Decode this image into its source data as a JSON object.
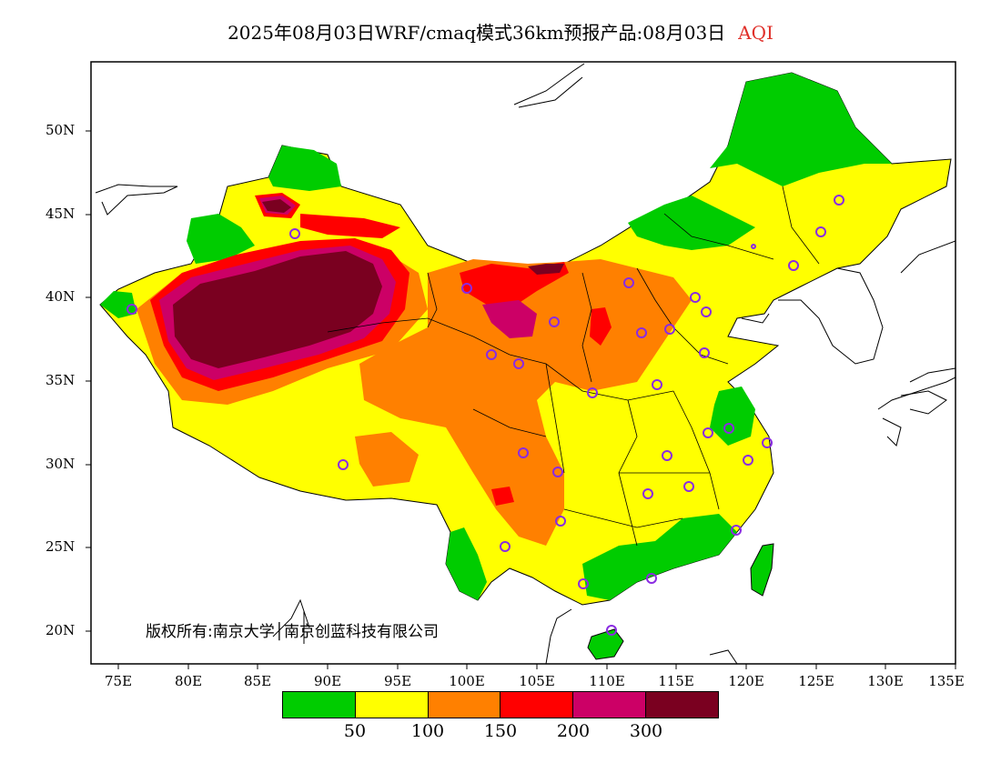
{
  "title": {
    "main": "2025年08月03日WRF/cmaq模式36km预报产品:08月03日",
    "variable": "AQI"
  },
  "axes": {
    "lat_ticks": [
      "50N",
      "45N",
      "40N",
      "35N",
      "30N",
      "25N",
      "20N"
    ],
    "lon_ticks": [
      "75E",
      "80E",
      "85E",
      "90E",
      "95E",
      "100E",
      "105E",
      "110E",
      "115E",
      "120E",
      "125E",
      "130E",
      "135E"
    ]
  },
  "copyright": "版权所有:南京大学│南京创蓝科技有限公司",
  "legend": {
    "colors": [
      "#00cc00",
      "#ffff00",
      "#ff8000",
      "#ff0000",
      "#cc0066",
      "#7a0020"
    ],
    "labels": [
      "50",
      "100",
      "150",
      "200",
      "300"
    ]
  },
  "palette": {
    "land_green": "#00cc00",
    "border": "#000000",
    "station": "#8a2be2"
  }
}
